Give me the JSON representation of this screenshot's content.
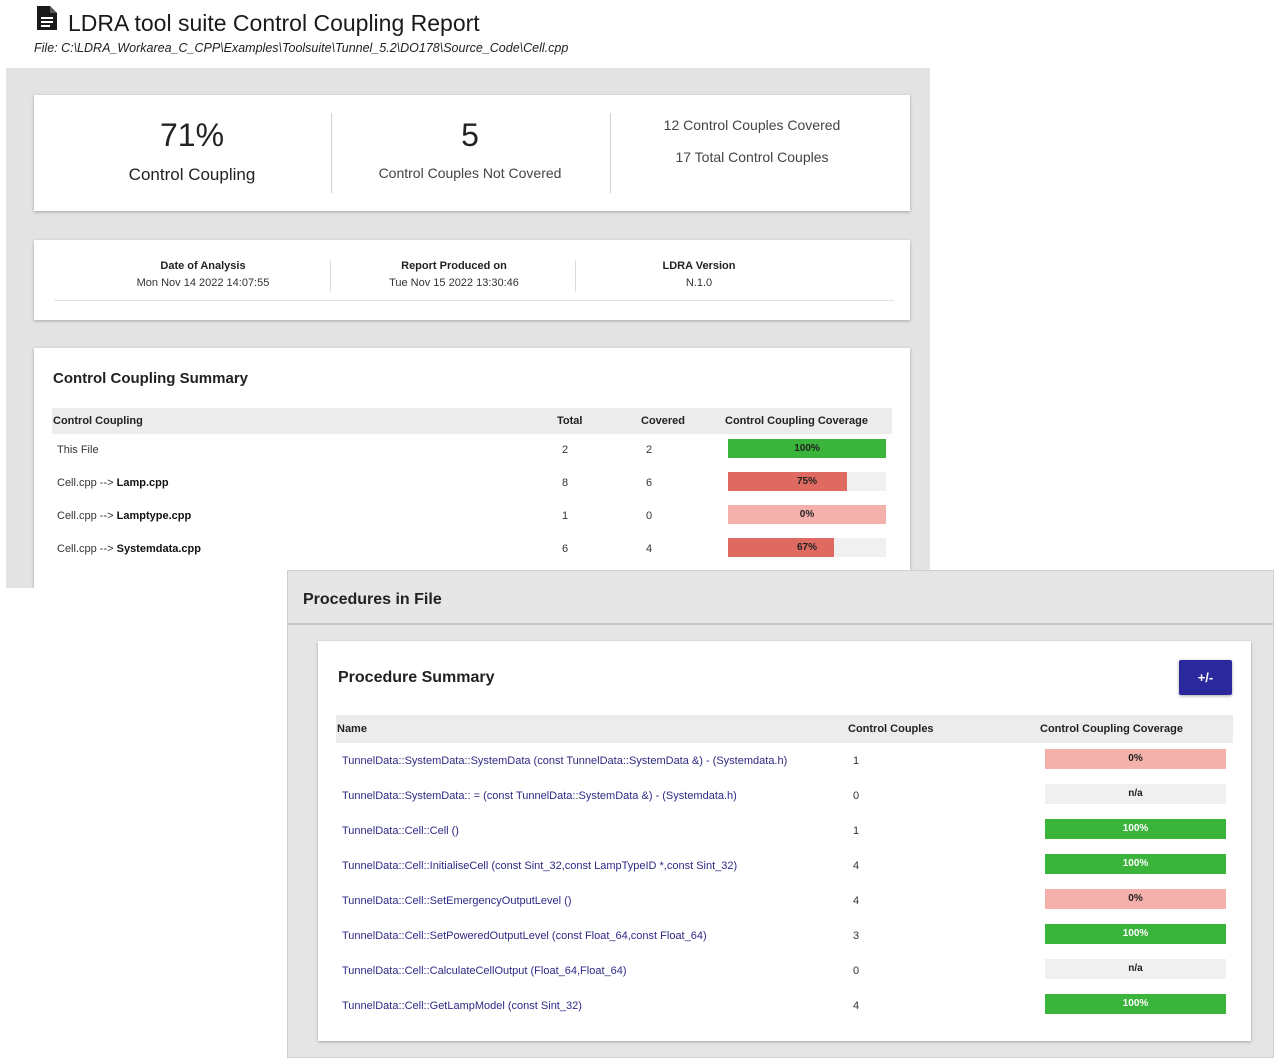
{
  "report": {
    "title": "LDRA tool suite Control Coupling Report",
    "file_path": "File: C:\\LDRA_Workarea_C_CPP\\Examples\\Toolsuite\\Tunnel_5.2\\DO178\\Source_Code\\Cell.cpp"
  },
  "stats": {
    "coverage_value": "71%",
    "coverage_label": "Control Coupling",
    "not_covered_value": "5",
    "not_covered_label": "Control Couples Not Covered",
    "covered_text": "12 Control Couples Covered",
    "total_text": "17 Total Control Couples"
  },
  "info": {
    "date_label": "Date of Analysis",
    "date_value": "Mon Nov 14 2022 14:07:55",
    "produced_label": "Report Produced on",
    "produced_value": "Tue Nov 15 2022 13:30:46",
    "version_label": "LDRA Version",
    "version_value": "N.1.0"
  },
  "summary": {
    "title": "Control Coupling Summary",
    "columns": {
      "name": "Control Coupling",
      "total": "Total",
      "covered": "Covered",
      "coverage": "Control Coupling Coverage"
    },
    "rows": [
      {
        "prefix": "This File",
        "target": "",
        "total": "2",
        "covered": "2",
        "coverage_label": "100%",
        "coverage_pct": 100,
        "bar_color": "#3ab43a"
      },
      {
        "prefix": "Cell.cpp --> ",
        "target": "Lamp.cpp",
        "total": "8",
        "covered": "6",
        "coverage_label": "75%",
        "coverage_pct": 75,
        "bar_color": "#df6a62"
      },
      {
        "prefix": "Cell.cpp --> ",
        "target": "Lamptype.cpp",
        "total": "1",
        "covered": "0",
        "coverage_label": "0%",
        "coverage_pct": 100,
        "bar_color": "#f4b0aa"
      },
      {
        "prefix": "Cell.cpp --> ",
        "target": "Systemdata.cpp",
        "total": "6",
        "covered": "4",
        "coverage_label": "67%",
        "coverage_pct": 67,
        "bar_color": "#df6a62"
      }
    ]
  },
  "procedures": {
    "section_title": "Procedures in File",
    "card_title": "Procedure Summary",
    "toggle_label": "+/-",
    "columns": {
      "name": "Name",
      "control_couples": "Control Couples",
      "coverage": "Control Coupling Coverage"
    },
    "rows": [
      {
        "name": "TunnelData::SystemData::SystemData (const TunnelData::SystemData &) - (Systemdata.h)",
        "control_couples": "1",
        "coverage_label": "0%",
        "coverage_pct": 100,
        "bar_color": "#f4b0aa"
      },
      {
        "name": "TunnelData::SystemData:: = (const TunnelData::SystemData &) - (Systemdata.h)",
        "control_couples": "0",
        "coverage_label": "n/a",
        "coverage_pct": 0,
        "bar_color": "#f0f0f0"
      },
      {
        "name": "TunnelData::Cell::Cell ()",
        "control_couples": "1",
        "coverage_label": "100%",
        "coverage_pct": 100,
        "bar_color": "#3ab43a"
      },
      {
        "name": "TunnelData::Cell::InitialiseCell (const Sint_32,const LampTypeID *,const Sint_32)",
        "control_couples": "4",
        "coverage_label": "100%",
        "coverage_pct": 100,
        "bar_color": "#3ab43a"
      },
      {
        "name": "TunnelData::Cell::SetEmergencyOutputLevel ()",
        "control_couples": "4",
        "coverage_label": "0%",
        "coverage_pct": 100,
        "bar_color": "#f4b0aa"
      },
      {
        "name": "TunnelData::Cell::SetPoweredOutputLevel (const Float_64,const Float_64)",
        "control_couples": "3",
        "coverage_label": "100%",
        "coverage_pct": 100,
        "bar_color": "#3ab43a"
      },
      {
        "name": "TunnelData::Cell::CalculateCellOutput (Float_64,Float_64)",
        "control_couples": "0",
        "coverage_label": "n/a",
        "coverage_pct": 0,
        "bar_color": "#f0f0f0"
      },
      {
        "name": "TunnelData::Cell::GetLampModel (const Sint_32)",
        "control_couples": "4",
        "coverage_label": "100%",
        "coverage_pct": 100,
        "bar_color": "#3ab43a"
      }
    ]
  },
  "icons": {
    "document": "document-icon"
  }
}
